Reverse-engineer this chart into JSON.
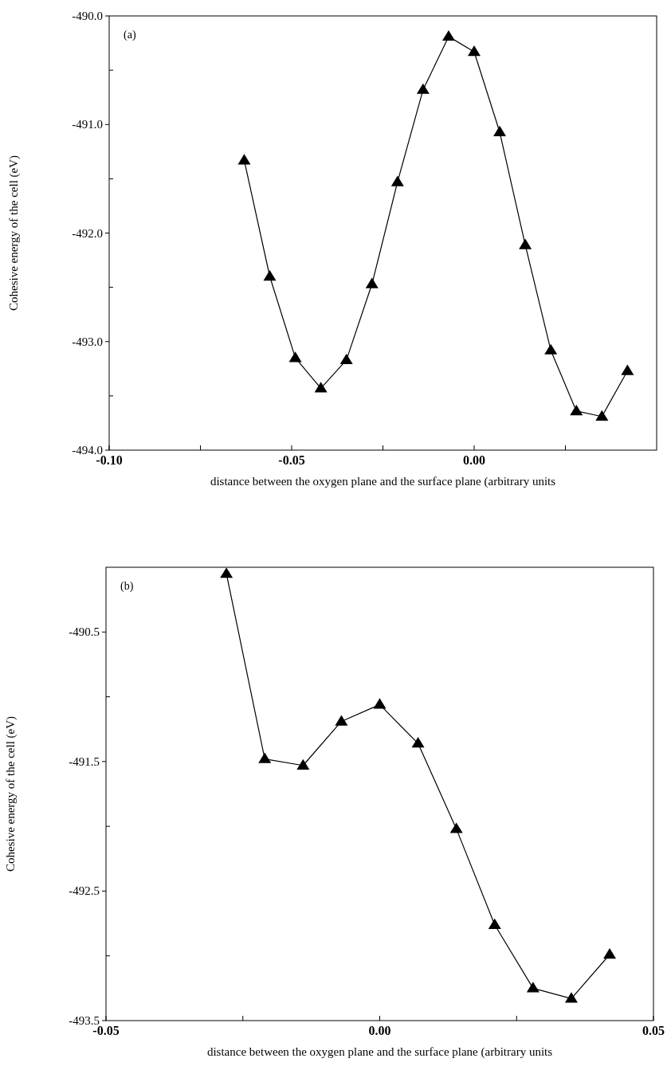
{
  "chart_data": [
    {
      "type": "line",
      "annotations": [
        "(a)"
      ],
      "xlabel": "distance between the oxygen plane and the surface plane (arbitrary units",
      "ylabel": "Cohesive energy of the cell (eV)",
      "marker": "triangle",
      "line_style": "solid",
      "color": "#000000",
      "x": [
        -0.063,
        -0.056,
        -0.049,
        -0.042,
        -0.035,
        -0.028,
        -0.021,
        -0.014,
        -0.007,
        0.0,
        0.007,
        0.014,
        0.021,
        0.028,
        0.035,
        0.042
      ],
      "values": [
        -491.33,
        -492.4,
        -493.15,
        -493.43,
        -493.17,
        -492.47,
        -491.53,
        -490.68,
        -490.19,
        -490.33,
        -491.07,
        -492.11,
        -493.08,
        -493.64,
        -493.69,
        -493.27
      ],
      "xlim": [
        -0.1,
        0.05
      ],
      "xticks": [
        {
          "value": -0.1,
          "label": "-0.10"
        },
        {
          "value": -0.075,
          "label": null
        },
        {
          "value": -0.05,
          "label": "-0.05"
        },
        {
          "value": -0.025,
          "label": null
        },
        {
          "value": 0,
          "label": "0.00"
        },
        {
          "value": 0.025,
          "label": null
        }
      ],
      "ylim": [
        -494,
        -490
      ],
      "yticks": [
        {
          "value": -494,
          "label": "-494.0"
        },
        {
          "value": -493.5,
          "label": null
        },
        {
          "value": -493,
          "label": "-493.0"
        },
        {
          "value": -492.5,
          "label": null
        },
        {
          "value": -492,
          "label": "-492.0"
        },
        {
          "value": -491.5,
          "label": null
        },
        {
          "value": -491,
          "label": "-491.0"
        },
        {
          "value": -490.5,
          "label": null
        },
        {
          "value": -490,
          "label": "-490.0"
        }
      ]
    },
    {
      "type": "line",
      "annotations": [
        "(b)"
      ],
      "xlabel": "distance between the oxygen plane and the surface plane (arbitrary units",
      "ylabel": "Cohesive energy of the cell (eV)",
      "marker": "triangle",
      "line_style": "solid",
      "color": "#000000",
      "x": [
        -0.028,
        -0.021,
        -0.014,
        -0.007,
        0.0,
        0.007,
        0.014,
        0.021,
        0.028,
        0.035,
        0.042
      ],
      "values": [
        -490.05,
        -491.48,
        -491.53,
        -491.19,
        -491.06,
        -491.36,
        -492.02,
        -492.76,
        -493.25,
        -493.33,
        -492.99
      ],
      "xlim": [
        -0.05,
        0.05
      ],
      "xticks": [
        {
          "value": -0.05,
          "label": "-0.05"
        },
        {
          "value": -0.025,
          "label": null
        },
        {
          "value": 0,
          "label": "0.00"
        },
        {
          "value": 0.025,
          "label": null
        },
        {
          "value": 0.05,
          "label": "0.05"
        }
      ],
      "ylim": [
        -493.5,
        -490.0
      ],
      "yticks": [
        {
          "value": -493.5,
          "label": "-493.5"
        },
        {
          "value": -493,
          "label": null
        },
        {
          "value": -492.5,
          "label": "-492.5"
        },
        {
          "value": -492,
          "label": null
        },
        {
          "value": -491.5,
          "label": "-491.5"
        },
        {
          "value": -491,
          "label": null
        },
        {
          "value": -490.5,
          "label": "-490.5"
        }
      ]
    }
  ]
}
